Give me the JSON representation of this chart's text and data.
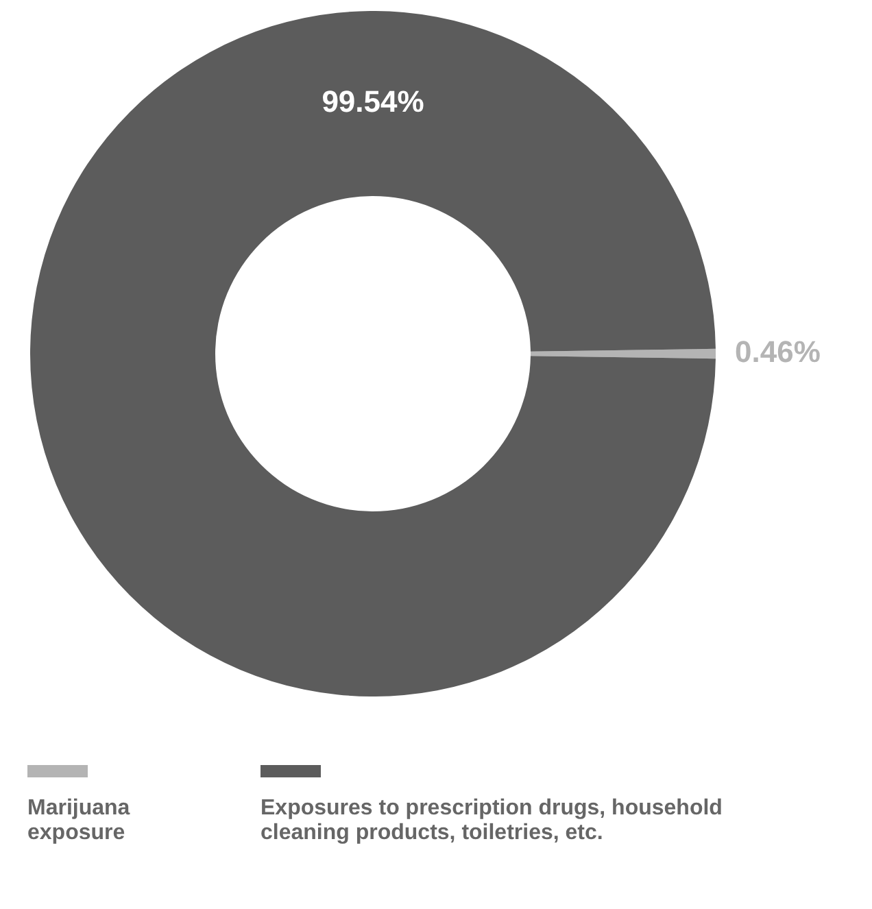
{
  "chart_data": {
    "type": "donut",
    "categories": [
      "Marijuana exposure",
      "Exposures to prescription drugs, household cleaning products, toiletries, etc."
    ],
    "values": [
      0.46,
      99.54
    ],
    "colors": [
      "#b4b4b4",
      "#5c5c5c"
    ],
    "value_labels": [
      "0.46%",
      "99.54%"
    ],
    "legend": "bottom"
  }
}
